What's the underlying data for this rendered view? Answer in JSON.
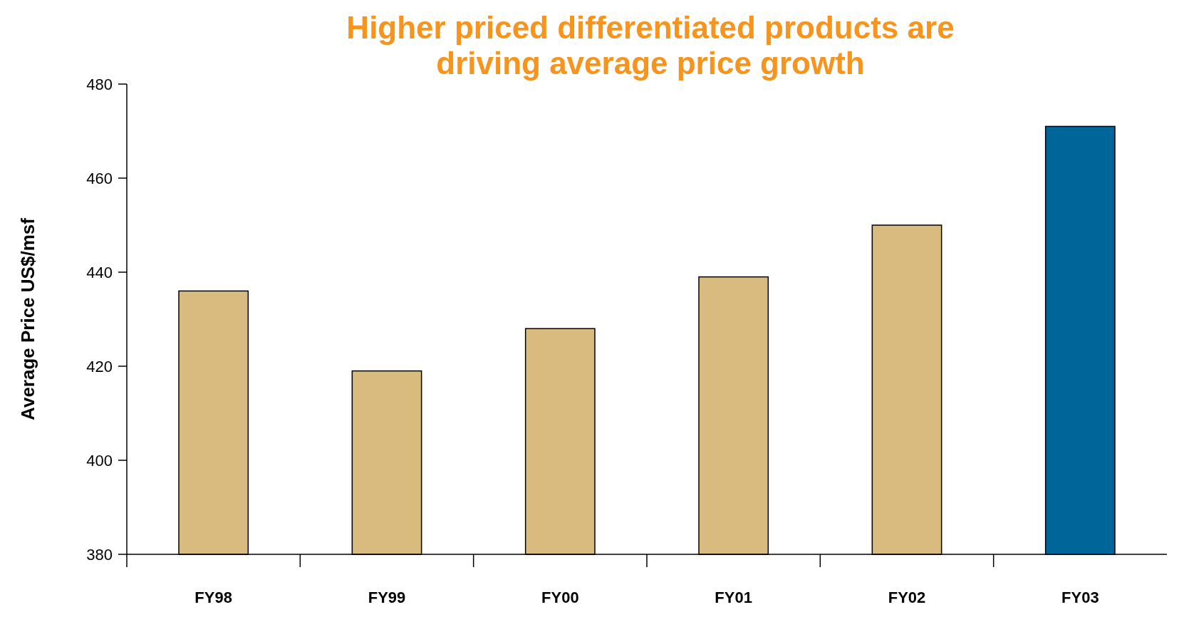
{
  "chart_data": {
    "type": "bar",
    "title": "Higher priced differentiated products are driving average price growth",
    "ylabel": "Average Price US$/msf",
    "categories": [
      "FY98",
      "FY99",
      "FY00",
      "FY01",
      "FY02",
      "FY03"
    ],
    "values": [
      436,
      419,
      428,
      439,
      450,
      471
    ],
    "colors": [
      "#d9bb80",
      "#d9bb80",
      "#d9bb80",
      "#d9bb80",
      "#d9bb80",
      "#006699"
    ],
    "ylim": [
      380,
      480
    ],
    "yticks": [
      380,
      400,
      420,
      440,
      460,
      480
    ],
    "grid": false
  }
}
